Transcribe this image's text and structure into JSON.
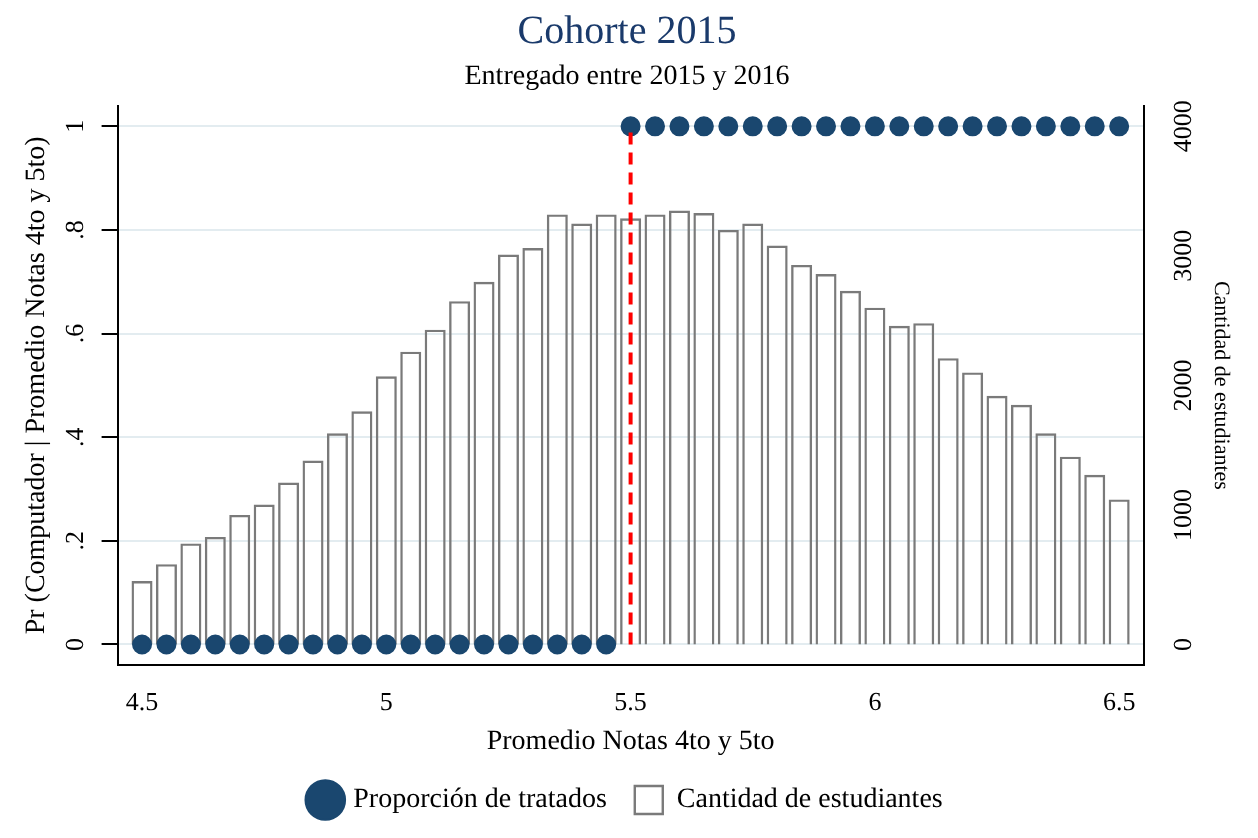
{
  "chart_data": {
    "type": "bar",
    "title": "Cohorte 2015",
    "subtitle": "Entregado entre 2015 y 2016",
    "xlabel": "Promedio Notas 4to y 5to",
    "ylabel": "Pr (Computador | Promedio Notas 4to y 5to)",
    "y2label": "Cantidad de estudiantes",
    "x": [
      4.5,
      4.55,
      4.6,
      4.65,
      4.7,
      4.75,
      4.8,
      4.85,
      4.9,
      4.95,
      5,
      5.05,
      5.1,
      5.15,
      5.2,
      5.25,
      5.3,
      5.35,
      5.4,
      5.45,
      5.5,
      5.55,
      5.6,
      5.65,
      5.7,
      5.75,
      5.8,
      5.85,
      5.9,
      5.95,
      6,
      6.05,
      6.1,
      6.15,
      6.2,
      6.25,
      6.3,
      6.35,
      6.4,
      6.45,
      6.5
    ],
    "series": [
      {
        "name": "Proporción de tratados",
        "type": "scatter",
        "axis": "y",
        "color": "#1a476f",
        "x": [
          4.5,
          4.55,
          4.6,
          4.65,
          4.7,
          4.75,
          4.8,
          4.85,
          4.9,
          4.95,
          5,
          5.05,
          5.1,
          5.15,
          5.2,
          5.25,
          5.3,
          5.35,
          5.4,
          5.45,
          5.5,
          5.55,
          5.6,
          5.65,
          5.7,
          5.75,
          5.8,
          5.85,
          5.9,
          5.95,
          6,
          6.05,
          6.1,
          6.15,
          6.2,
          6.25,
          6.3,
          6.35,
          6.4,
          6.45,
          6.5
        ],
        "values": [
          0,
          0,
          0,
          0,
          0,
          0,
          0,
          0,
          0,
          0,
          0,
          0,
          0,
          0,
          0,
          0,
          0,
          0,
          0,
          0,
          1,
          1,
          1,
          1,
          1,
          1,
          1,
          1,
          1,
          1,
          1,
          1,
          1,
          1,
          1,
          1,
          1,
          1,
          1,
          1,
          1
        ]
      },
      {
        "name": "Cantidad de estudiantes",
        "type": "bar",
        "axis": "y2",
        "color": "#7a7a7a",
        "values": [
          490,
          620,
          780,
          830,
          1000,
          1080,
          1250,
          1420,
          1630,
          1800,
          2070,
          2260,
          2430,
          2650,
          2800,
          3010,
          3060,
          3320,
          3250,
          3320,
          3290,
          3320,
          3350,
          3330,
          3200,
          3250,
          3080,
          2930,
          2860,
          2730,
          2600,
          2460,
          2480,
          2210,
          2100,
          1920,
          1850,
          1630,
          1450,
          1310,
          1120
        ]
      }
    ],
    "xlim": [
      4.45,
      6.55
    ],
    "xticks": [
      4.5,
      5,
      5.5,
      6,
      6.5
    ],
    "ylim": [
      -0.04,
      1.04
    ],
    "yticks": [
      0,
      {
        "value": 0.2,
        "label": ".2"
      },
      {
        "value": 0.4,
        "label": ".4"
      },
      {
        "value": 0.6,
        "label": ".6"
      },
      {
        "value": 0.8,
        "label": ".8"
      },
      1
    ],
    "y2lim": [
      -160,
      4160
    ],
    "y2ticks": [
      0,
      1000,
      2000,
      3000,
      4000
    ],
    "ref_lines": [
      {
        "axis": "x",
        "value": 5.5,
        "color": "#ff0000",
        "line_style": "dashed"
      }
    ],
    "grid": "y",
    "legend": "bottom",
    "marker": "circle"
  }
}
